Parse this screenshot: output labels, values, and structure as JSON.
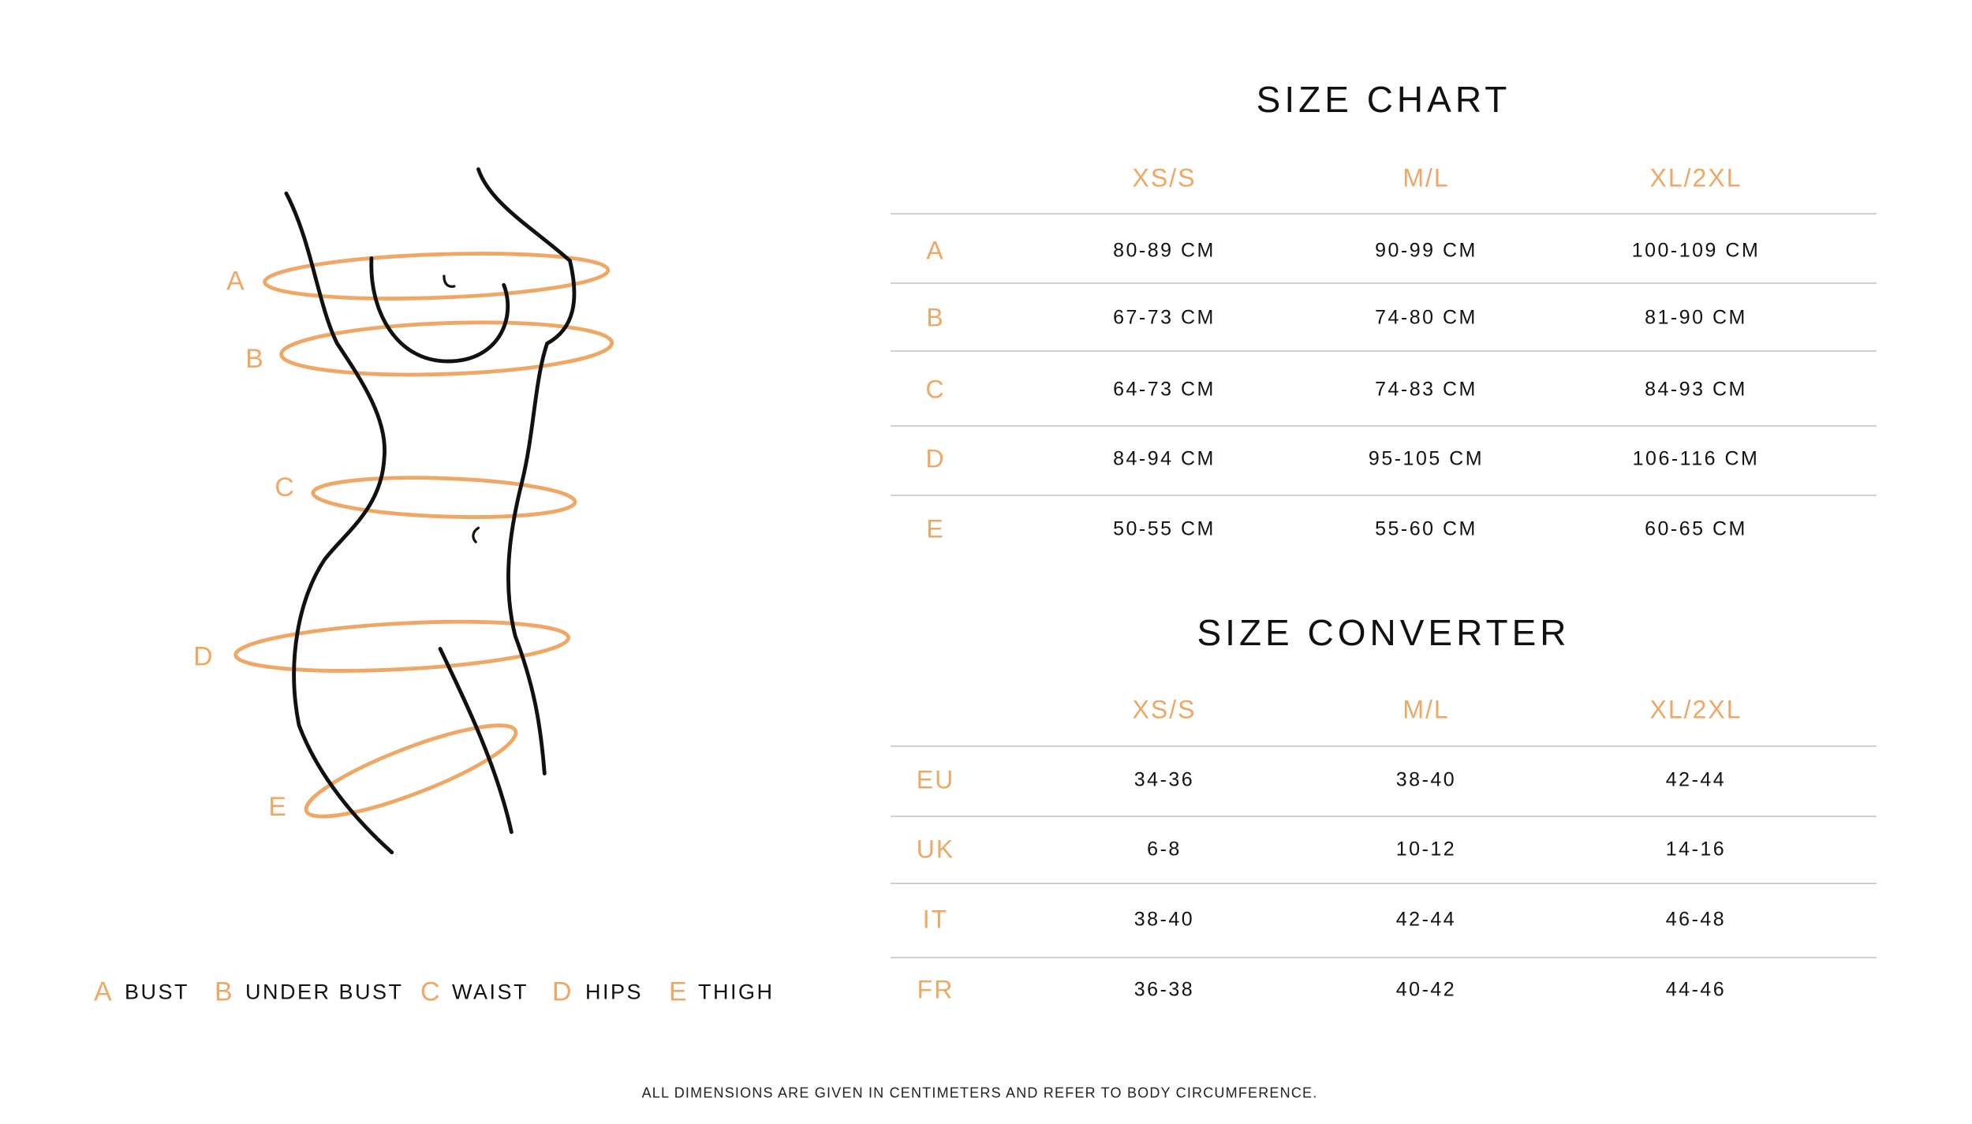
{
  "size_chart": {
    "title": "SIZE CHART",
    "columns": [
      "XS/S",
      "M/L",
      "XL/2XL"
    ],
    "rows": [
      {
        "label": "A",
        "values": [
          "80-89 CM",
          "90-99 CM",
          "100-109 CM"
        ]
      },
      {
        "label": "B",
        "values": [
          "67-73 CM",
          "74-80 CM",
          "81-90 CM"
        ]
      },
      {
        "label": "C",
        "values": [
          "64-73 CM",
          "74-83 CM",
          "84-93 CM"
        ]
      },
      {
        "label": "D",
        "values": [
          "84-94 CM",
          "95-105 CM",
          "106-116 CM"
        ]
      },
      {
        "label": "E",
        "values": [
          "50-55 CM",
          "55-60 CM",
          "60-65 CM"
        ]
      }
    ]
  },
  "size_converter": {
    "title": "SIZE CONVERTER",
    "columns": [
      "XS/S",
      "M/L",
      "XL/2XL"
    ],
    "rows": [
      {
        "label": "EU",
        "values": [
          "34-36",
          "38-40",
          "42-44"
        ]
      },
      {
        "label": "UK",
        "values": [
          "6-8",
          "10-12",
          "14-16"
        ]
      },
      {
        "label": "IT",
        "values": [
          "38-40",
          "42-44",
          "46-48"
        ]
      },
      {
        "label": "FR",
        "values": [
          "36-38",
          "40-42",
          "44-46"
        ]
      }
    ]
  },
  "figure": {
    "labels": [
      "A",
      "B",
      "C",
      "D",
      "E"
    ]
  },
  "legend": [
    {
      "letter": "A",
      "text": "BUST"
    },
    {
      "letter": "B",
      "text": "UNDER BUST"
    },
    {
      "letter": "C",
      "text": "WAIST"
    },
    {
      "letter": "D",
      "text": "HIPS"
    },
    {
      "letter": "E",
      "text": "THIGH"
    }
  ],
  "footer": "ALL DIMENSIONS ARE GIVEN IN CENTIMETERS AND REFER TO BODY CIRCUMFERENCE.",
  "colors": {
    "accent": "#eea765",
    "text": "#111111",
    "divider": "#d0d0d0"
  }
}
